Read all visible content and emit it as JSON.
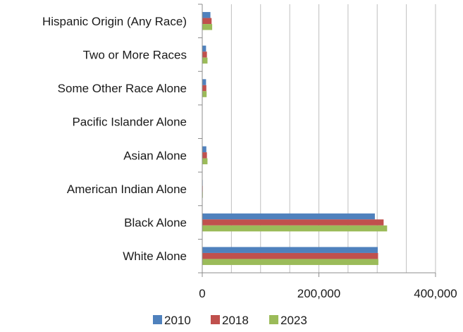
{
  "chart_data": {
    "type": "bar",
    "orientation": "horizontal",
    "categories": [
      "White Alone",
      "Black Alone",
      "American Indian Alone",
      "Asian Alone",
      "Pacific Islander Alone",
      "Some Other Race Alone",
      "Two or More Races",
      "Hispanic Origin (Any Race)"
    ],
    "series": [
      {
        "name": "2010",
        "color": "#4f81bd",
        "values": [
          301000,
          296000,
          800,
          7000,
          100,
          6500,
          6500,
          14000
        ]
      },
      {
        "name": "2018",
        "color": "#c0504d",
        "values": [
          301500,
          311000,
          900,
          8000,
          100,
          7000,
          8000,
          16000
        ]
      },
      {
        "name": "2023",
        "color": "#9bbb59",
        "values": [
          302000,
          317000,
          1000,
          9000,
          100,
          7500,
          9000,
          17000
        ]
      }
    ],
    "xlim": [
      0,
      400000
    ],
    "x_ticks": [
      0,
      200000,
      400000
    ],
    "x_tick_labels": [
      "0",
      "200,000",
      "400,000"
    ],
    "grid": "vertical",
    "legend_position": "bottom",
    "title": "",
    "xlabel": "",
    "ylabel": ""
  }
}
